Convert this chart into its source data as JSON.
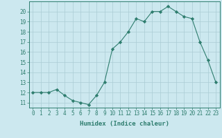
{
  "x": [
    0,
    1,
    2,
    3,
    4,
    5,
    6,
    7,
    8,
    9,
    10,
    11,
    12,
    13,
    14,
    15,
    16,
    17,
    18,
    19,
    20,
    21,
    22,
    23
  ],
  "y": [
    12,
    12,
    12,
    12.3,
    11.7,
    11.2,
    11.0,
    10.8,
    11.7,
    13.0,
    16.3,
    17.0,
    18.0,
    19.3,
    19.0,
    20.0,
    20.0,
    20.5,
    20.0,
    19.5,
    19.3,
    17.0,
    15.2,
    13.0
  ],
  "line_color": "#2e7d6e",
  "marker": "D",
  "marker_size": 2.2,
  "bg_color": "#cce8ef",
  "grid_color": "#aaccd4",
  "xlabel": "Humidex (Indice chaleur)",
  "ylim": [
    10.5,
    21.0
  ],
  "xlim": [
    -0.5,
    23.5
  ],
  "yticks": [
    11,
    12,
    13,
    14,
    15,
    16,
    17,
    18,
    19,
    20
  ],
  "xticks": [
    0,
    1,
    2,
    3,
    4,
    5,
    6,
    7,
    8,
    9,
    10,
    11,
    12,
    13,
    14,
    15,
    16,
    17,
    18,
    19,
    20,
    21,
    22,
    23
  ],
  "tick_color": "#2e7d6e",
  "tick_fontsize": 5.5,
  "xlabel_fontsize": 6.5,
  "linewidth": 0.8
}
